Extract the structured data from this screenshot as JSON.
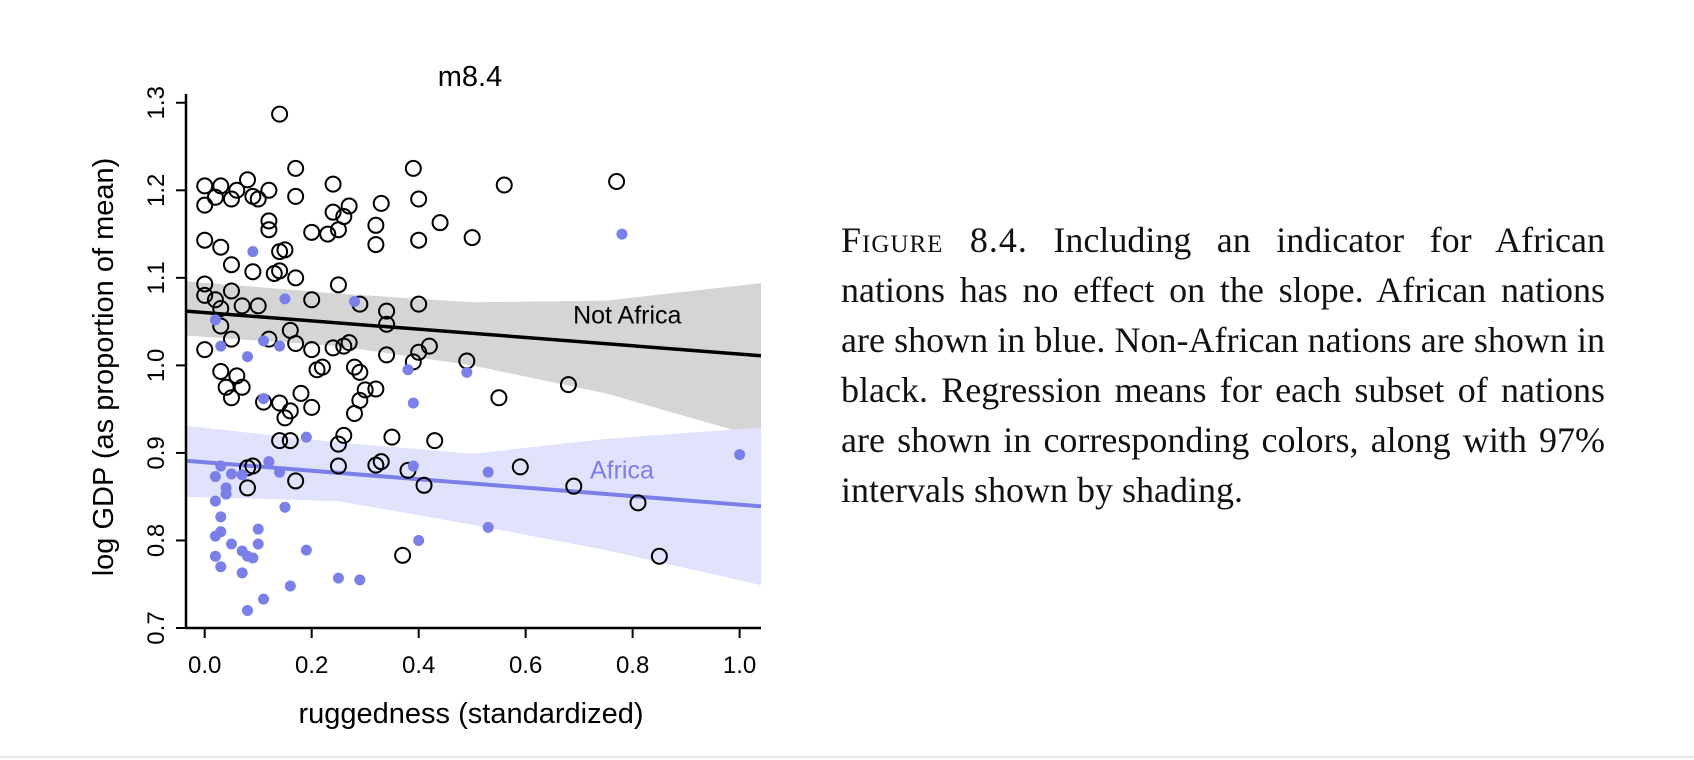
{
  "caption": {
    "label": "Figure 8.4.",
    "text": "Including an indicator for African nations has no effect on the slope. African nations are shown in blue. Non-African nations are shown in black. Regression means for each subset of nations are shown in corresponding colors, along with 97% intervals shown by shading."
  },
  "colors": {
    "not_africa": "#000000",
    "africa": "#7b7fe8",
    "not_africa_band": "#d5d5d5",
    "africa_band": "#e1e2fb"
  },
  "chart_data": {
    "type": "scatter",
    "title": "m8.4",
    "xlabel": "ruggedness (standardized)",
    "ylabel": "log GDP (as proportion of mean)",
    "xlim": [
      -0.035,
      1.04
    ],
    "ylim": [
      0.7,
      1.31
    ],
    "xticks": [
      "0.0",
      "0.2",
      "0.4",
      "0.6",
      "0.8",
      "1.0"
    ],
    "yticks": [
      "0.7",
      "0.8",
      "0.9",
      "1.0",
      "1.1",
      "1.2",
      "1.3"
    ],
    "lines": [
      {
        "name": "Not Africa",
        "x": [
          -0.035,
          1.04
        ],
        "y": [
          1.062,
          1.011
        ]
      },
      {
        "name": "Africa",
        "x": [
          -0.035,
          1.04
        ],
        "y": [
          0.891,
          0.839
        ]
      }
    ],
    "bands": [
      {
        "series": "Not Africa",
        "x": [
          -0.035,
          0.25,
          0.5,
          0.75,
          1.04
        ],
        "lower": [
          1.034,
          1.022,
          1.0,
          0.968,
          0.917
        ],
        "upper": [
          1.096,
          1.082,
          1.072,
          1.074,
          1.094
        ]
      },
      {
        "series": "Africa",
        "x": [
          -0.035,
          0.25,
          0.5,
          0.75,
          1.04
        ],
        "lower": [
          0.85,
          0.845,
          0.818,
          0.789,
          0.749
        ],
        "upper": [
          0.931,
          0.912,
          0.899,
          0.916,
          0.929
        ]
      }
    ],
    "series": [
      {
        "name": "Not Africa",
        "points": [
          [
            0.0,
            1.205
          ],
          [
            0.0,
            1.183
          ],
          [
            0.02,
            1.192
          ],
          [
            0.03,
            1.205
          ],
          [
            0.05,
            1.19
          ],
          [
            0.06,
            1.2
          ],
          [
            0.08,
            1.212
          ],
          [
            0.09,
            1.193
          ],
          [
            0.1,
            1.19
          ],
          [
            0.12,
            1.2
          ],
          [
            0.14,
            1.287
          ],
          [
            0.17,
            1.225
          ],
          [
            0.17,
            1.193
          ],
          [
            0.24,
            1.207
          ],
          [
            0.24,
            1.175
          ],
          [
            0.27,
            1.182
          ],
          [
            0.26,
            1.17
          ],
          [
            0.33,
            1.185
          ],
          [
            0.39,
            1.225
          ],
          [
            0.4,
            1.19
          ],
          [
            0.56,
            1.206
          ],
          [
            0.77,
            1.21
          ],
          [
            0.0,
            1.143
          ],
          [
            0.03,
            1.135
          ],
          [
            0.05,
            1.115
          ],
          [
            0.09,
            1.107
          ],
          [
            0.12,
            1.155
          ],
          [
            0.12,
            1.165
          ],
          [
            0.13,
            1.105
          ],
          [
            0.14,
            1.13
          ],
          [
            0.15,
            1.132
          ],
          [
            0.2,
            1.152
          ],
          [
            0.23,
            1.15
          ],
          [
            0.25,
            1.155
          ],
          [
            0.32,
            1.16
          ],
          [
            0.32,
            1.138
          ],
          [
            0.4,
            1.143
          ],
          [
            0.44,
            1.163
          ],
          [
            0.5,
            1.146
          ],
          [
            0.0,
            1.093
          ],
          [
            0.0,
            1.08
          ],
          [
            0.02,
            1.075
          ],
          [
            0.03,
            1.065
          ],
          [
            0.05,
            1.085
          ],
          [
            0.07,
            1.068
          ],
          [
            0.1,
            1.068
          ],
          [
            0.14,
            1.108
          ],
          [
            0.17,
            1.1
          ],
          [
            0.2,
            1.075
          ],
          [
            0.25,
            1.092
          ],
          [
            0.29,
            1.07
          ],
          [
            0.34,
            1.062
          ],
          [
            0.34,
            1.047
          ],
          [
            0.4,
            1.07
          ],
          [
            0.0,
            1.018
          ],
          [
            0.03,
            1.045
          ],
          [
            0.05,
            1.03
          ],
          [
            0.12,
            1.03
          ],
          [
            0.16,
            1.04
          ],
          [
            0.17,
            1.025
          ],
          [
            0.2,
            1.018
          ],
          [
            0.21,
            0.995
          ],
          [
            0.22,
            0.998
          ],
          [
            0.24,
            1.02
          ],
          [
            0.26,
            1.022
          ],
          [
            0.27,
            1.026
          ],
          [
            0.28,
            0.998
          ],
          [
            0.29,
            0.992
          ],
          [
            0.3,
            0.972
          ],
          [
            0.34,
            1.012
          ],
          [
            0.39,
            1.004
          ],
          [
            0.4,
            1.015
          ],
          [
            0.42,
            1.022
          ],
          [
            0.49,
            1.005
          ],
          [
            0.03,
            0.993
          ],
          [
            0.06,
            0.988
          ],
          [
            0.04,
            0.975
          ],
          [
            0.07,
            0.975
          ],
          [
            0.05,
            0.963
          ],
          [
            0.11,
            0.958
          ],
          [
            0.14,
            0.957
          ],
          [
            0.15,
            0.94
          ],
          [
            0.16,
            0.948
          ],
          [
            0.18,
            0.968
          ],
          [
            0.2,
            0.952
          ],
          [
            0.28,
            0.945
          ],
          [
            0.29,
            0.96
          ],
          [
            0.32,
            0.973
          ],
          [
            0.55,
            0.963
          ],
          [
            0.68,
            0.978
          ],
          [
            0.14,
            0.914
          ],
          [
            0.16,
            0.914
          ],
          [
            0.25,
            0.91
          ],
          [
            0.26,
            0.92
          ],
          [
            0.33,
            0.89
          ],
          [
            0.35,
            0.918
          ],
          [
            0.43,
            0.914
          ],
          [
            0.32,
            0.886
          ],
          [
            0.08,
            0.883
          ],
          [
            0.09,
            0.885
          ],
          [
            0.08,
            0.86
          ],
          [
            0.17,
            0.868
          ],
          [
            0.25,
            0.885
          ],
          [
            0.38,
            0.88
          ],
          [
            0.41,
            0.863
          ],
          [
            0.59,
            0.884
          ],
          [
            0.69,
            0.862
          ],
          [
            0.81,
            0.843
          ],
          [
            0.37,
            0.783
          ],
          [
            0.85,
            0.782
          ]
        ]
      },
      {
        "name": "Africa",
        "points": [
          [
            0.78,
            1.15
          ],
          [
            0.09,
            1.13
          ],
          [
            0.15,
            1.076
          ],
          [
            0.28,
            1.073
          ],
          [
            0.02,
            1.052
          ],
          [
            0.03,
            1.022
          ],
          [
            0.14,
            1.022
          ],
          [
            0.11,
            1.028
          ],
          [
            0.08,
            1.01
          ],
          [
            0.38,
            0.995
          ],
          [
            0.49,
            0.992
          ],
          [
            0.11,
            0.962
          ],
          [
            0.39,
            0.957
          ],
          [
            0.19,
            0.918
          ],
          [
            1.0,
            0.898
          ],
          [
            0.12,
            0.89
          ],
          [
            0.03,
            0.885
          ],
          [
            0.02,
            0.873
          ],
          [
            0.05,
            0.876
          ],
          [
            0.07,
            0.875
          ],
          [
            0.04,
            0.86
          ],
          [
            0.14,
            0.878
          ],
          [
            0.39,
            0.885
          ],
          [
            0.53,
            0.878
          ],
          [
            0.02,
            0.845
          ],
          [
            0.04,
            0.853
          ],
          [
            0.15,
            0.838
          ],
          [
            0.03,
            0.827
          ],
          [
            0.03,
            0.81
          ],
          [
            0.02,
            0.805
          ],
          [
            0.1,
            0.813
          ],
          [
            0.53,
            0.815
          ],
          [
            0.05,
            0.796
          ],
          [
            0.07,
            0.788
          ],
          [
            0.1,
            0.796
          ],
          [
            0.4,
            0.8
          ],
          [
            0.02,
            0.782
          ],
          [
            0.08,
            0.782
          ],
          [
            0.09,
            0.78
          ],
          [
            0.19,
            0.789
          ],
          [
            0.03,
            0.77
          ],
          [
            0.07,
            0.763
          ],
          [
            0.25,
            0.757
          ],
          [
            0.29,
            0.755
          ],
          [
            0.16,
            0.748
          ],
          [
            0.11,
            0.733
          ],
          [
            0.08,
            0.72
          ]
        ]
      }
    ],
    "annotations": [
      {
        "text": "Not Africa",
        "x": 0.79,
        "y": 1.048
      },
      {
        "text": "Africa",
        "x": 0.78,
        "y": 0.871
      }
    ]
  }
}
